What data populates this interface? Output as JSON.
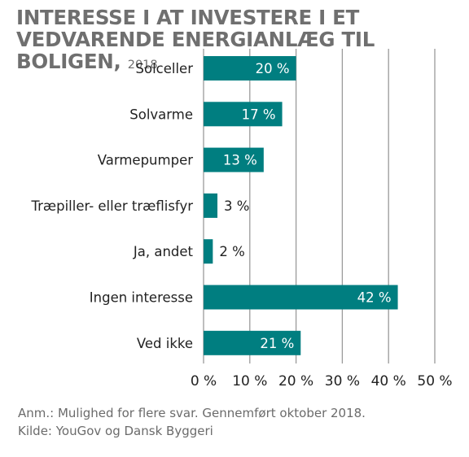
{
  "header": {
    "title": "INTERESSE I AT INVESTERE I ET VEDVARENDE ENERGIANLÆG TIL BOLIGEN,",
    "year": "2018"
  },
  "chart_data": {
    "type": "bar",
    "orientation": "horizontal",
    "categories": [
      "Solceller",
      "Solvarme",
      "Varmepumper",
      "Træpiller- eller træflisfyr",
      "Ja, andet",
      "Ingen interesse",
      "Ved ikke"
    ],
    "values": [
      20,
      17,
      13,
      3,
      2,
      42,
      21
    ],
    "value_labels": [
      "20 %",
      "17 %",
      "13 %",
      "3 %",
      "2 %",
      "42 %",
      "21 %"
    ],
    "xlim": [
      0,
      50
    ],
    "x_ticks": [
      0,
      10,
      20,
      30,
      40,
      50
    ],
    "x_tick_labels": [
      "0 %",
      "10 %",
      "20 %",
      "30 %",
      "40 %",
      "50 %"
    ],
    "grid": true,
    "bar_color": "#007e80",
    "grid_color": "#9a9a9a",
    "title_color": "#6f6f6f"
  },
  "footer": {
    "note": "Anm.: Mulighed for flere svar. Gennemført oktober 2018.",
    "source": "Kilde: YouGov og Dansk Byggeri"
  }
}
